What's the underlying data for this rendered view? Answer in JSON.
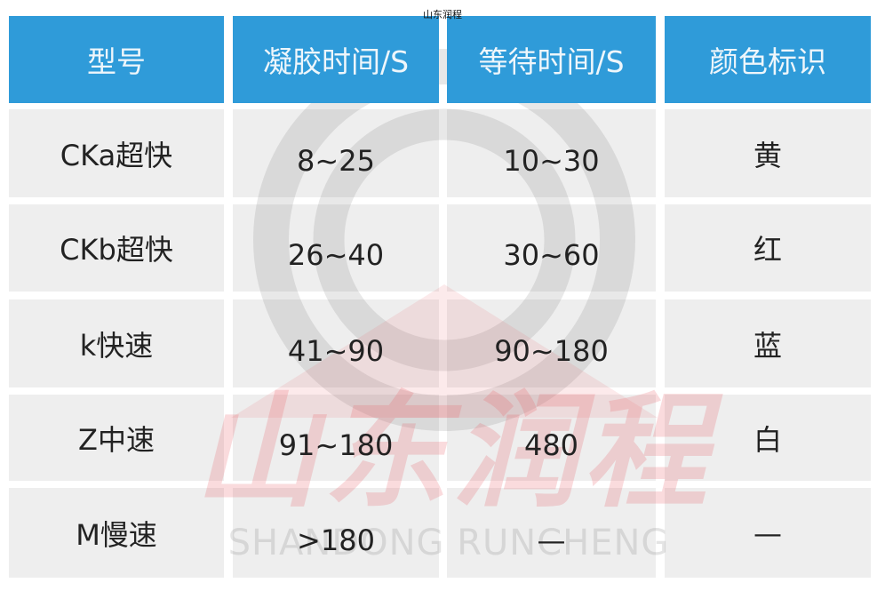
{
  "caption": "山东润程",
  "table": {
    "headers": [
      "型号",
      "凝胶时间/S",
      "等待时间/S",
      "颜色标识"
    ],
    "rows": [
      [
        "CKa超快",
        "8~25",
        "10~30",
        "黄"
      ],
      [
        "CKb超快",
        "26~40",
        "30~60",
        "红"
      ],
      [
        "k快速",
        "41~90",
        "90~180",
        "蓝"
      ],
      [
        "Z中速",
        "91~180",
        "480",
        "白"
      ],
      [
        "M慢速",
        ">180",
        "—",
        "—"
      ]
    ]
  },
  "watermark": {
    "chinese": "山东润程",
    "english": "SHANDONG RUNCHENG"
  },
  "colors": {
    "header_bg": "#2f9bd9",
    "row_bg": "#eeeeee",
    "watermark_red": "#e85a64"
  }
}
